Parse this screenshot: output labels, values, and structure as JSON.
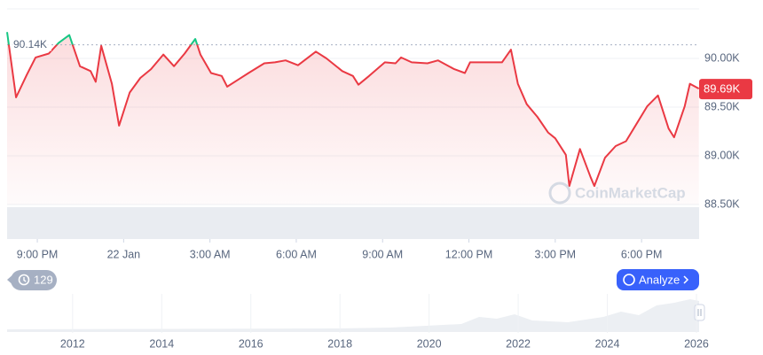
{
  "chart_data": {
    "type": "line",
    "x": [
      19.95,
      20.26,
      20.63,
      20.94,
      21.4,
      21.74,
      22.11,
      22.48,
      22.85,
      23.03,
      23.22,
      23.59,
      23.84,
      24.21,
      24.58,
      24.95,
      25.38,
      25.75,
      26.12,
      26.49,
      26.67,
      27.04,
      27.41,
      27.6,
      27.97,
      28.34,
      28.89,
      29.26,
      29.63,
      30.06,
      30.68,
      31.05,
      31.6,
      31.97,
      32.16,
      32.53,
      33.08,
      33.45,
      33.64,
      34.01,
      34.56,
      34.93,
      35.49,
      35.86,
      36.04,
      36.6,
      37.15,
      37.46,
      37.7,
      38.01,
      38.38,
      38.75,
      39.0,
      39.37,
      39.49,
      39.86,
      40.23,
      40.36,
      40.73,
      41.1,
      41.46,
      41.83,
      42.2,
      42.57,
      42.94,
      43.13,
      43.5,
      43.68,
      43.99
    ],
    "series": [
      {
        "color": "#ea3943",
        "up_color": "#16c784",
        "values": [
          90270,
          89600,
          89830,
          90010,
          90050,
          90160,
          90240,
          89920,
          89870,
          89760,
          90130,
          89740,
          89310,
          89650,
          89800,
          89890,
          90040,
          89920,
          90050,
          90200,
          90040,
          89850,
          89820,
          89710,
          89780,
          89850,
          89950,
          89960,
          89980,
          89930,
          90070,
          90000,
          89870,
          89820,
          89730,
          89820,
          89960,
          89950,
          90010,
          89960,
          89950,
          89980,
          89890,
          89850,
          89960,
          89960,
          89960,
          90090,
          89740,
          89530,
          89400,
          89240,
          89180,
          89010,
          88690,
          89070,
          88780,
          88690,
          88980,
          89100,
          89150,
          89330,
          89510,
          89620,
          89280,
          89190,
          89510,
          89740,
          89690
        ]
      }
    ],
    "xlim": [
      19.95,
      44.0
    ],
    "xticks": [
      {
        "value": 21,
        "label": "9:00 PM"
      },
      {
        "value": 24,
        "label": "22 Jan"
      },
      {
        "value": 27,
        "label": "3:00 AM"
      },
      {
        "value": 30,
        "label": "6:00 AM"
      },
      {
        "value": 33,
        "label": "9:00 AM"
      },
      {
        "value": 36,
        "label": "12:00 PM"
      },
      {
        "value": 39,
        "label": "3:00 PM"
      },
      {
        "value": 42,
        "label": "6:00 PM"
      }
    ],
    "ylim": [
      88145,
      90509
    ],
    "yticks": [
      {
        "value": 90000,
        "label": "90.00K"
      },
      {
        "value": 89500,
        "label": "89.50K"
      },
      {
        "value": 89000,
        "label": "89.00K"
      },
      {
        "value": 88500,
        "label": "88.50K"
      }
    ],
    "reference": {
      "value": 90140,
      "label": "90.14K"
    },
    "price_label": {
      "value": 89690,
      "label": "89.69K"
    },
    "grid": true,
    "watermark": "CoinMarketCap",
    "history_count": "129",
    "analyze_button": "Analyze",
    "overview": {
      "xlim": [
        2010.53,
        2026.06
      ],
      "xticks": [
        2012,
        2014,
        2016,
        2018,
        2020,
        2022,
        2024,
        2026
      ]
    }
  }
}
